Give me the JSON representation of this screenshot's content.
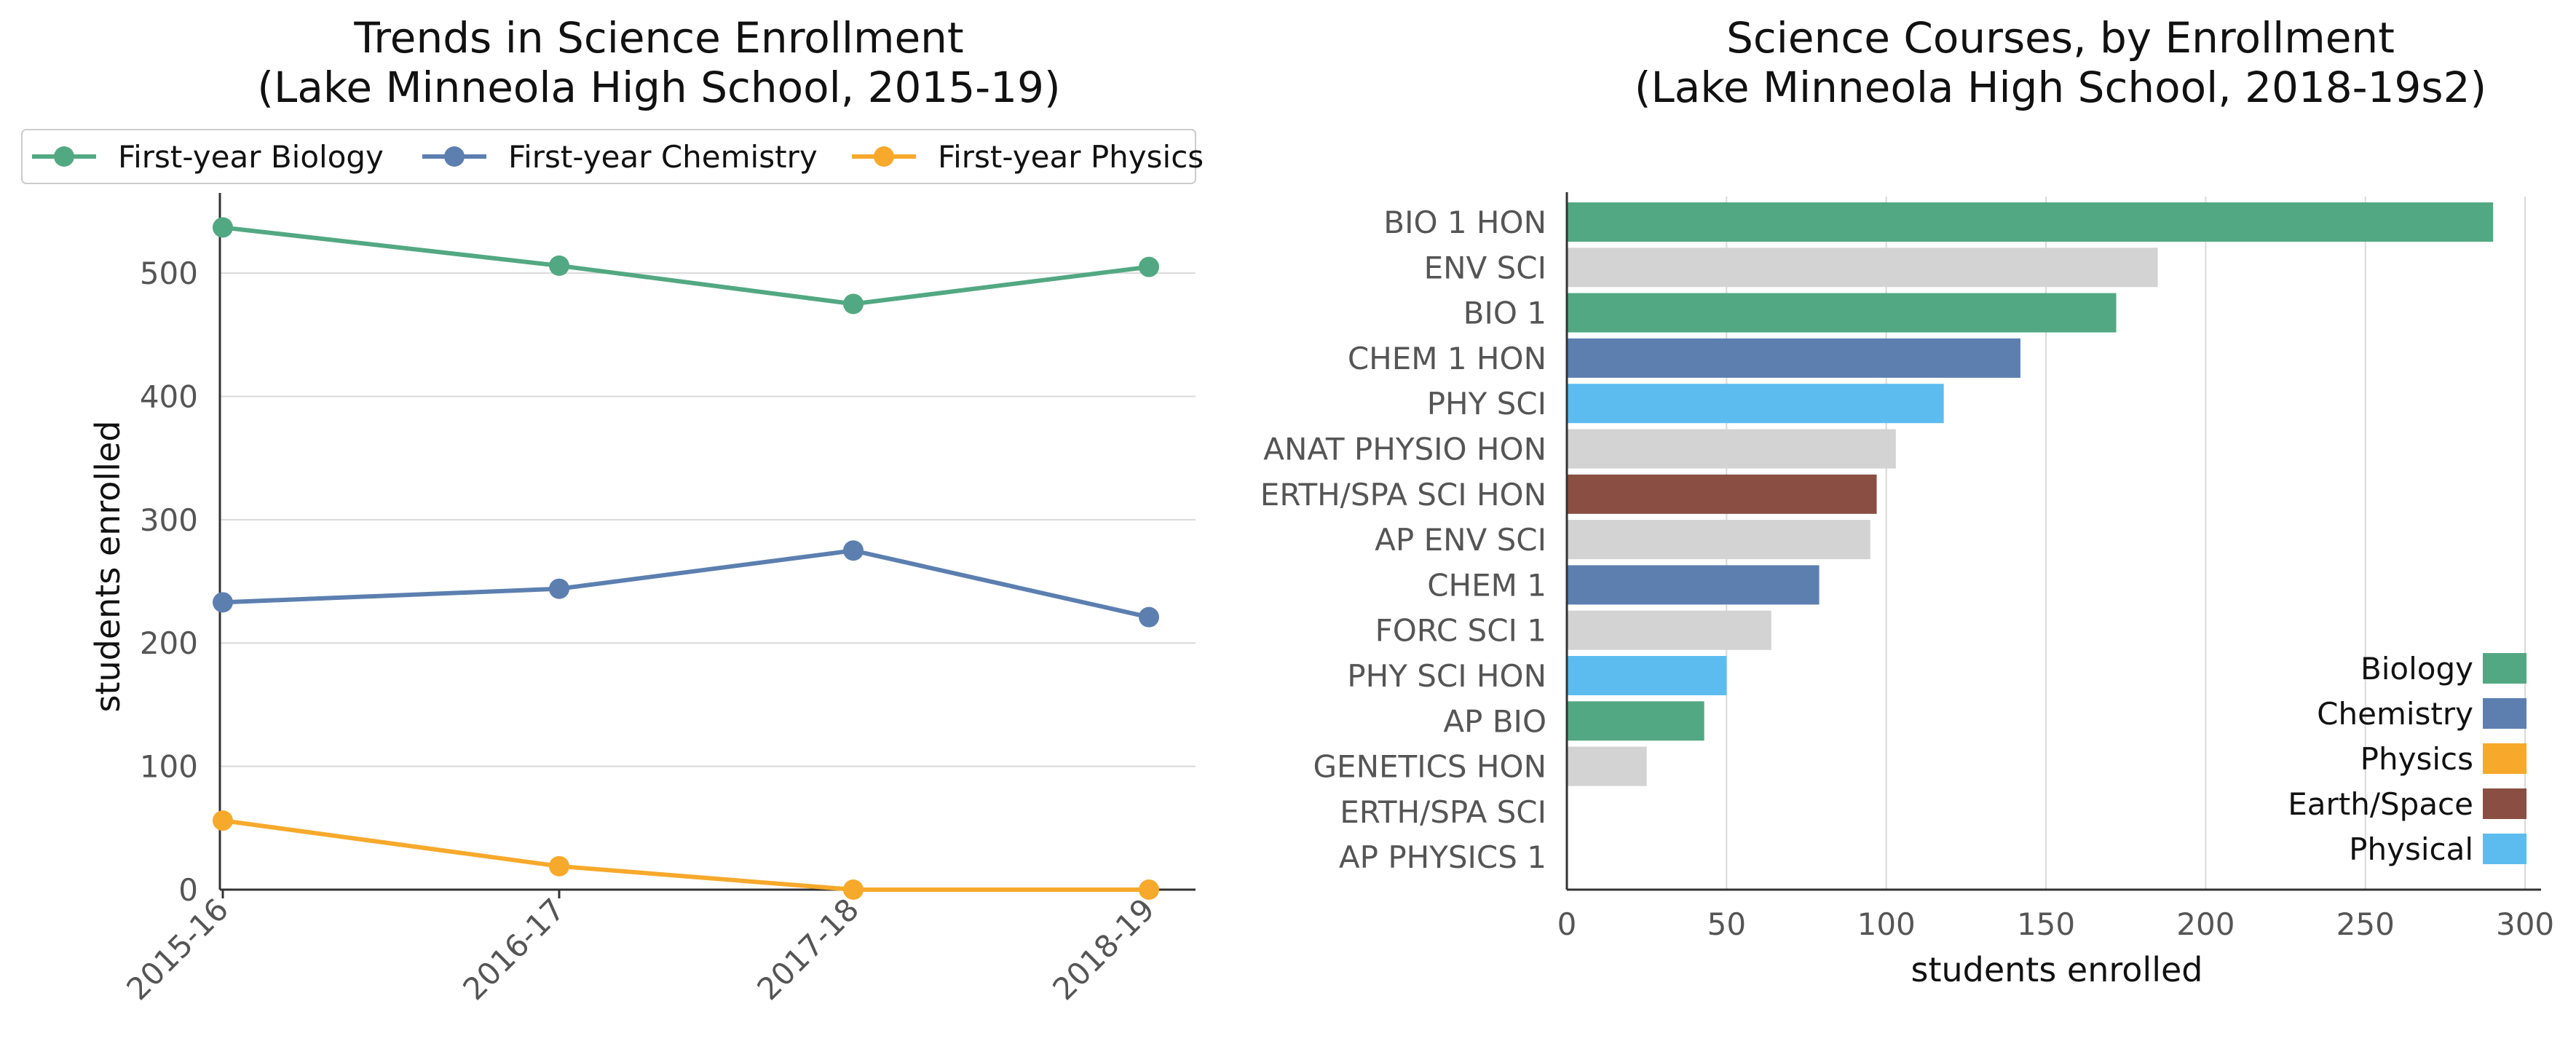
{
  "chart_data": [
    {
      "type": "line",
      "title": "Trends in Science Enrollment",
      "subtitle": "(Lake Minneola High School, 2015-19)",
      "xlabel": "",
      "ylabel": "students enrolled",
      "categories": [
        "2015-16",
        "2016-17",
        "2017-18",
        "2018-19"
      ],
      "series": [
        {
          "name": "First-year Biology",
          "values": [
            537,
            506,
            475,
            505
          ],
          "color": "#52a882"
        },
        {
          "name": "First-year Chemistry",
          "values": [
            233,
            244,
            275,
            221
          ],
          "color": "#5c7fb0"
        },
        {
          "name": "First-year Physics",
          "values": [
            56,
            19,
            0,
            0
          ],
          "color": "#f7a92b"
        }
      ],
      "ylim": [
        0,
        565
      ],
      "yticks": [
        0,
        100,
        200,
        300,
        400,
        500
      ],
      "grid": "horizontal",
      "legend_position": "top"
    },
    {
      "type": "bar",
      "orientation": "horizontal",
      "title": "Science Courses, by Enrollment",
      "subtitle": "(Lake Minneola High School, 2018-19s2)",
      "xlabel": "students enrolled",
      "ylabel": "",
      "categories": [
        "BIO 1 HON",
        "ENV SCI",
        "BIO 1",
        "CHEM 1 HON",
        "PHY SCI",
        "ANAT PHYSIO HON",
        "ERTH/SPA SCI HON",
        "AP ENV SCI",
        "CHEM 1",
        "FORC SCI 1",
        "PHY SCI HON",
        "AP BIO",
        "GENETICS HON",
        "ERTH/SPA SCI",
        "AP PHYSICS 1"
      ],
      "values": [
        290,
        185,
        172,
        142,
        118,
        103,
        97,
        95,
        79,
        64,
        50,
        43,
        25,
        0,
        0
      ],
      "groups": [
        "Biology",
        "Other",
        "Biology",
        "Chemistry",
        "Physical",
        "Other",
        "Earth/Space",
        "Other",
        "Chemistry",
        "Other",
        "Physical",
        "Biology",
        "Other",
        "Earth/Space",
        "Physics"
      ],
      "group_colors": {
        "Biology": "#52a882",
        "Chemistry": "#5c7fb0",
        "Physics": "#f7a92b",
        "Earth/Space": "#8b4e42",
        "Physical": "#5dbcef",
        "Other": "#d3d3d3"
      },
      "legend": [
        "Biology",
        "Chemistry",
        "Physics",
        "Earth/Space",
        "Physical"
      ],
      "xlim": [
        0,
        305
      ],
      "xticks": [
        0,
        50,
        100,
        150,
        200,
        250,
        300
      ],
      "grid": "vertical",
      "legend_position": "lower-right"
    }
  ]
}
